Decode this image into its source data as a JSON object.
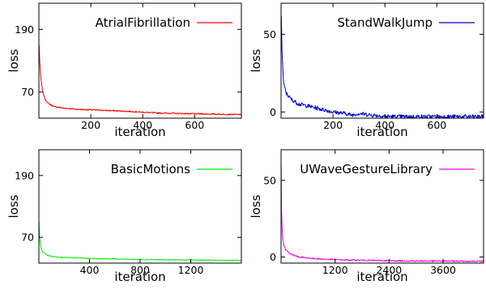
{
  "chart_data": [
    {
      "type": "line",
      "title": "",
      "xlabel": "iteration",
      "ylabel": "loss",
      "xlim": [
        0,
        780
      ],
      "ylim": [
        20,
        240
      ],
      "x_ticks": [
        200,
        400,
        600
      ],
      "y_ticks": [
        70,
        190
      ],
      "grid": false,
      "legend_position": "top-right",
      "series": [
        {
          "name": "AtrialFibrillation",
          "color": "#ff0000",
          "points": [
            [
              1,
              160
            ],
            [
              3,
              130
            ],
            [
              8,
              95
            ],
            [
              15,
              70
            ],
            [
              25,
              55
            ],
            [
              40,
              47
            ],
            [
              60,
              42
            ],
            [
              100,
              39
            ],
            [
              150,
              37
            ],
            [
              200,
              36
            ],
            [
              250,
              35
            ],
            [
              300,
              34
            ],
            [
              350,
              33
            ],
            [
              400,
              31.5
            ],
            [
              450,
              30
            ],
            [
              500,
              29.5
            ],
            [
              550,
              29
            ],
            [
              600,
              28.5
            ],
            [
              650,
              28
            ],
            [
              700,
              27.5
            ],
            [
              780,
              27
            ]
          ],
          "noise": 1.2
        }
      ]
    },
    {
      "type": "line",
      "title": "",
      "xlabel": "iteration",
      "ylabel": "loss",
      "xlim": [
        0,
        780
      ],
      "ylim": [
        -4,
        70
      ],
      "x_ticks": [
        200,
        400,
        600
      ],
      "y_ticks": [
        0,
        50
      ],
      "grid": false,
      "legend_position": "top-right",
      "series": [
        {
          "name": "StandWalkJump",
          "color": "#0000cc",
          "points": [
            [
              1,
              62
            ],
            [
              3,
              42
            ],
            [
              6,
              30
            ],
            [
              10,
              18
            ],
            [
              20,
              12
            ],
            [
              40,
              8
            ],
            [
              70,
              5
            ],
            [
              100,
              4
            ],
            [
              150,
              2
            ],
            [
              200,
              0
            ],
            [
              250,
              -1
            ],
            [
              270,
              -2
            ],
            [
              300,
              -1
            ],
            [
              350,
              -2
            ],
            [
              400,
              -2.8
            ],
            [
              450,
              -3
            ],
            [
              500,
              -3
            ],
            [
              600,
              -3
            ],
            [
              700,
              -3
            ],
            [
              780,
              -3
            ]
          ],
          "noise": 1.3
        }
      ]
    },
    {
      "type": "line",
      "title": "",
      "xlabel": "iteration",
      "ylabel": "loss",
      "xlim": [
        0,
        1600
      ],
      "ylim": [
        20,
        240
      ],
      "x_ticks": [
        400,
        800,
        1200
      ],
      "y_ticks": [
        70,
        190
      ],
      "grid": false,
      "legend_position": "top-right",
      "series": [
        {
          "name": "BasicMotions",
          "color": "#00ee00",
          "points": [
            [
              1,
              100
            ],
            [
              3,
              85
            ],
            [
              8,
              65
            ],
            [
              15,
              52
            ],
            [
              30,
              42
            ],
            [
              60,
              36
            ],
            [
              100,
              33
            ],
            [
              200,
              31
            ],
            [
              400,
              29
            ],
            [
              600,
              28
            ],
            [
              800,
              27
            ],
            [
              1000,
              26.5
            ],
            [
              1200,
              26
            ],
            [
              1400,
              25.5
            ],
            [
              1600,
              25
            ]
          ],
          "noise": 0.9
        }
      ]
    },
    {
      "type": "line",
      "title": "",
      "xlabel": "iteration",
      "ylabel": "loss",
      "xlim": [
        0,
        4500
      ],
      "ylim": [
        -4,
        70
      ],
      "x_ticks": [
        1200,
        2400,
        3600
      ],
      "y_ticks": [
        0,
        50
      ],
      "grid": false,
      "legend_position": "top-right",
      "series": [
        {
          "name": "UWaveGestureLibrary",
          "color": "#ee00ee",
          "points": [
            [
              1,
              62
            ],
            [
              10,
              30
            ],
            [
              30,
              14
            ],
            [
              60,
              8
            ],
            [
              100,
              5
            ],
            [
              200,
              2
            ],
            [
              400,
              0
            ],
            [
              700,
              -1
            ],
            [
              1000,
              -1.5
            ],
            [
              1500,
              -2
            ],
            [
              2000,
              -2.2
            ],
            [
              2500,
              -2.5
            ],
            [
              3000,
              -2.6
            ],
            [
              3600,
              -2.7
            ],
            [
              4500,
              -2.8
            ]
          ],
          "noise": 0.45
        }
      ]
    }
  ]
}
